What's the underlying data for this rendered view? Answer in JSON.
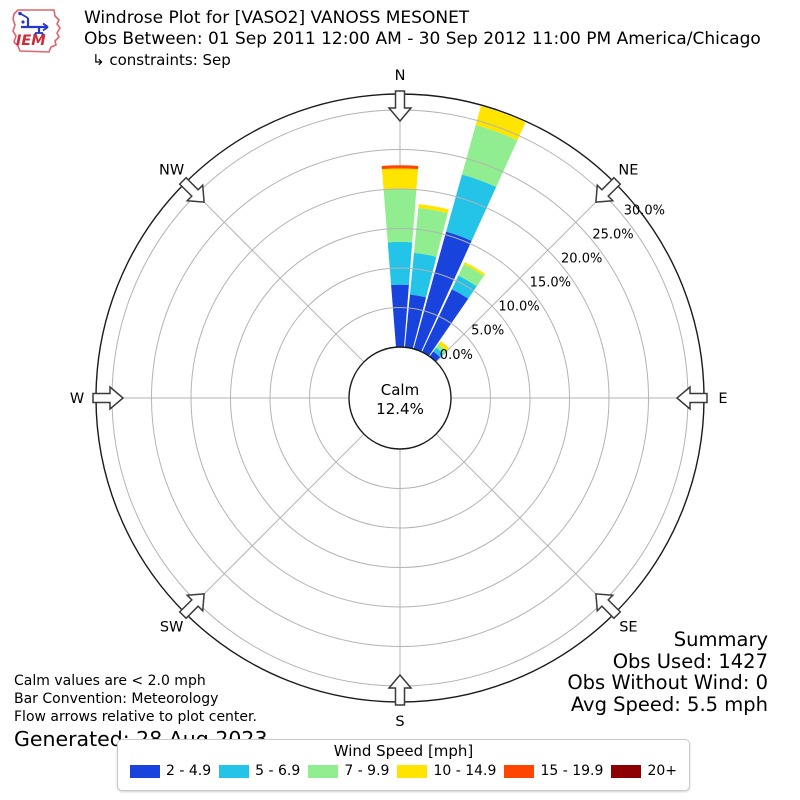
{
  "header": {
    "title": "Windrose Plot for [VASO2] VANOSS MESONET",
    "subtitle": "Obs Between: 01 Sep 2011 12:00 AM - 30 Sep 2012 11:00 PM America/Chicago",
    "constraints": "↳ constraints: Sep",
    "logo_text": "IEM"
  },
  "footer_left": {
    "calm_note": "Calm values are < 2.0 mph",
    "convention_note": "Bar Convention: Meteorology",
    "arrows_note": "Flow arrows relative to plot center.",
    "generated": "Generated: 28 Aug 2023"
  },
  "summary": {
    "title": "Summary",
    "obs_used": "Obs Used: 1427",
    "obs_without_wind": "Obs Without Wind: 0",
    "avg_speed": "Avg Speed: 5.5 mph"
  },
  "legend": {
    "title": "Wind Speed [mph]"
  },
  "chart_data": {
    "type": "windrose",
    "title": "Windrose Plot for [VASO2] VANOSS MESONET",
    "units": "mph",
    "bar_convention": "Meteorology",
    "calm_percent": 12.4,
    "calm_label": "Calm",
    "calm_value_label": "12.4%",
    "axis_max_percent": 32,
    "grid": true,
    "ring_percent_ticks": [
      0,
      5,
      10,
      15,
      20,
      25,
      30
    ],
    "ring_tick_labels": [
      "0.0%",
      "5.0%",
      "10.0%",
      "15.0%",
      "20.0%",
      "25.0%",
      "30.0%"
    ],
    "compass_labels": [
      "N",
      "NE",
      "E",
      "SE",
      "S",
      "SW",
      "W",
      "NW"
    ],
    "speed_bins": [
      {
        "label": "2 - 4.9",
        "color": "#1843dc"
      },
      {
        "label": "5 - 6.9",
        "color": "#23c4e8"
      },
      {
        "label": "7 - 9.9",
        "color": "#90ee90"
      },
      {
        "label": "10 - 14.9",
        "color": "#ffe400"
      },
      {
        "label": "15 - 19.9",
        "color": "#ff4500"
      },
      {
        "label": "20+",
        "color": "#8b0000"
      }
    ],
    "bars": [
      {
        "direction_deg": 0,
        "segments_percent": [
          7.9,
          5.4,
          6.7,
          2.6,
          0.4,
          0
        ],
        "total_percent": 23.0
      },
      {
        "direction_deg": 10,
        "segments_percent": [
          6.7,
          5.3,
          5.7,
          0.5,
          0,
          0
        ],
        "total_percent": 18.2
      },
      {
        "direction_deg": 20,
        "segments_percent": [
          15.4,
          7.5,
          6.5,
          2.5,
          0,
          0
        ],
        "total_percent": 31.9
      },
      {
        "direction_deg": 30,
        "segments_percent": [
          8.8,
          1.9,
          1.6,
          0.3,
          0,
          0
        ],
        "total_percent": 12.6
      },
      {
        "direction_deg": 40,
        "segments_percent": [
          0.8,
          0.6,
          0.5,
          0.5,
          0,
          0
        ],
        "total_percent": 2.4
      }
    ]
  }
}
